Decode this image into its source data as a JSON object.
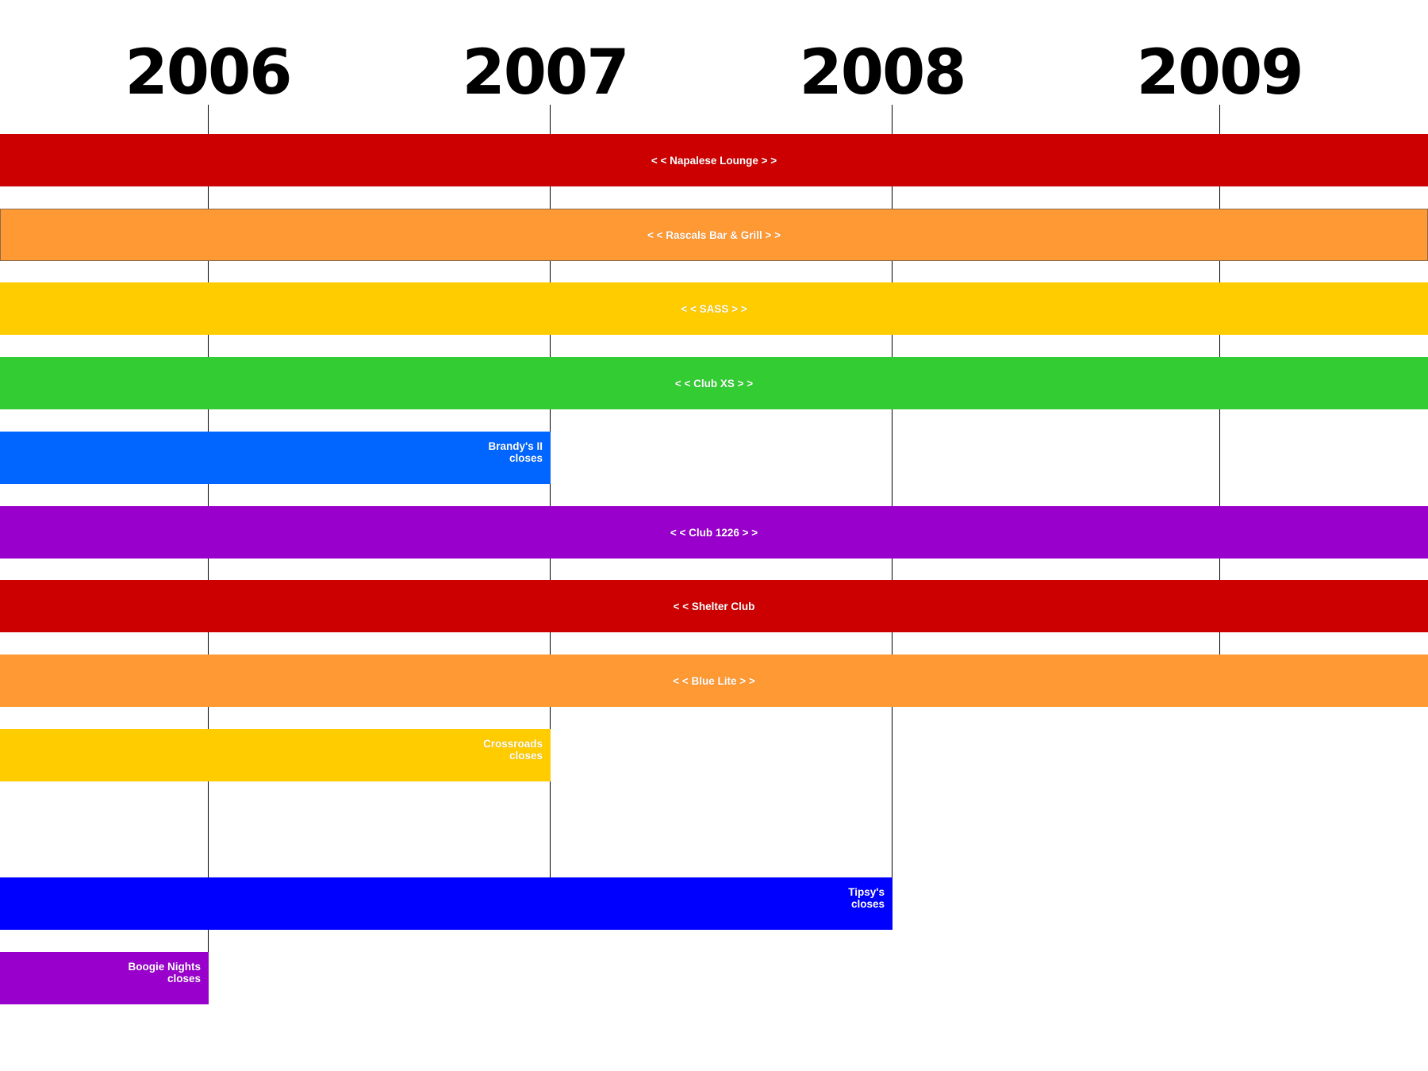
{
  "years": [
    "2006",
    "2007",
    "2008",
    "2009"
  ],
  "venues": [
    {
      "name": "Napalese Lounge",
      "label": "<  <   Napalese Lounge   >  >",
      "color": "#cc0000",
      "start": "before 2006",
      "end": "after 2009",
      "closes": false
    },
    {
      "name": "Rascals Bar & Grill",
      "label": "<  <   Rascals Bar & Grill   >  >",
      "color": "#ff9933",
      "start": "before 2006",
      "end": "after 2009",
      "closes": false
    },
    {
      "name": "SASS",
      "label": "<  <   SASS   >  >",
      "color": "#ffcc00",
      "start": "before 2006",
      "end": "after 2009",
      "closes": false
    },
    {
      "name": "Club XS",
      "label": "<  <   Club XS   >  >",
      "color": "#33cc33",
      "start": "before 2006",
      "end": "after 2009",
      "closes": false
    },
    {
      "name": "Brandy's II",
      "label": "Brandy's  II\ncloses",
      "color": "#0066ff",
      "start": "before 2006",
      "end": "2007",
      "closes": true
    },
    {
      "name": "Club 1226",
      "label": "<  <   Club 1226   >  >",
      "color": "#9900cc",
      "start": "before 2006",
      "end": "after 2009",
      "closes": false
    },
    {
      "name": "Shelter Club",
      "label": "<  <   Shelter Club",
      "color": "#cc0000",
      "start": "before 2006",
      "end": "after 2009",
      "closes": false
    },
    {
      "name": "Blue Lite",
      "label": "<  <   Blue Lite   >  >",
      "color": "#ff9933",
      "start": "before 2006",
      "end": "after 2009",
      "closes": false
    },
    {
      "name": "Crossroads",
      "label": "Crossroads\ncloses",
      "color": "#ffcc00",
      "start": "before 2006",
      "end": "2007",
      "closes": true
    },
    {
      "name": "Tipsy's",
      "label": "Tipsy's\ncloses",
      "color": "#0000ff",
      "start": "before 2006",
      "end": "2008",
      "closes": true
    },
    {
      "name": "Boogie Nights",
      "label": "Boogie Nights\ncloses",
      "color": "#9900cc",
      "start": "before 2006",
      "end": "2006",
      "closes": true
    }
  ]
}
